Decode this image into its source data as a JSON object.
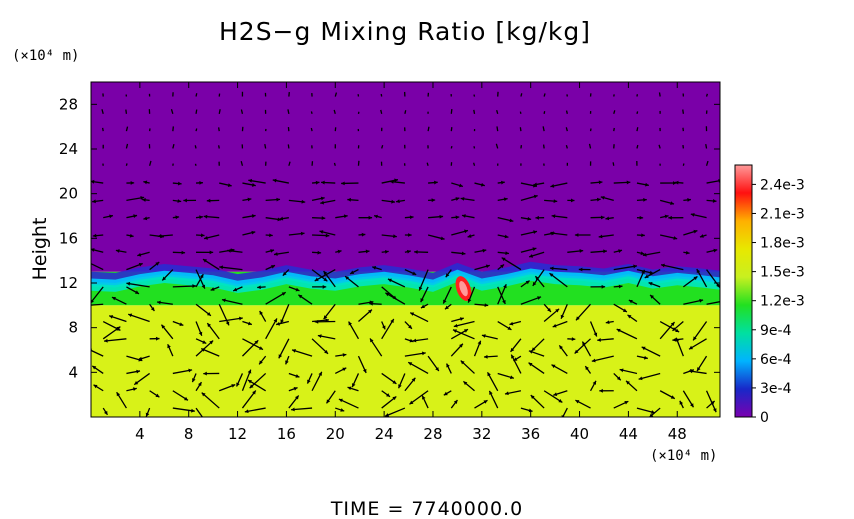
{
  "chart_data": {
    "type": "heatmap",
    "title": "H2S−g Mixing Ratio [kg/kg]",
    "ylabel": "Height",
    "y_unit": "(×10⁴ m)",
    "x_unit": "(×10⁴ m)",
    "footer": "TIME  =  7740000.0",
    "xlim": [
      0,
      51.5
    ],
    "ylim": [
      0,
      30
    ],
    "x_ticks": [
      4,
      8,
      12,
      16,
      20,
      24,
      28,
      32,
      36,
      40,
      44,
      48
    ],
    "y_ticks": [
      4,
      8,
      12,
      16,
      20,
      24,
      28
    ],
    "colorbar": {
      "labels": [
        "2.4e-3",
        "2.1e-3",
        "1.8e-3",
        "1.5e-3",
        "1.2e-3",
        "9e-4",
        "6e-4",
        "3e-4",
        "0"
      ],
      "values": [
        0.0024,
        0.0021,
        0.0018,
        0.0015,
        0.0012,
        0.0009,
        0.0006,
        0.0003,
        0
      ],
      "range": [
        0,
        0.0026
      ],
      "colors": [
        "#7a00b0",
        "#1828c8",
        "#00b4ff",
        "#00e0a0",
        "#22e020",
        "#c8f020",
        "#e8e800",
        "#ffb000",
        "#ff1010",
        "#ff9a9a"
      ]
    },
    "regions": [
      {
        "name": "upper",
        "y_range": [
          13,
          30
        ],
        "value": 0,
        "color": "#7a00a8"
      },
      {
        "name": "transition",
        "y_range": [
          10,
          13
        ],
        "value": 0.0012,
        "color": "#22e020"
      },
      {
        "name": "lower",
        "y_range": [
          0,
          10
        ],
        "value": 0.00165,
        "color": "#d8f218"
      }
    ],
    "interface_profile_x": [
      0,
      2,
      4,
      6,
      8,
      10,
      12,
      14,
      16,
      18,
      20,
      22,
      24,
      26,
      28,
      30,
      32,
      34,
      36,
      38,
      40,
      42,
      44,
      46,
      48,
      50,
      51.5
    ],
    "interface_profile_y": [
      13.0,
      12.9,
      13.4,
      13.7,
      13.5,
      13.3,
      12.8,
      13.1,
      13.6,
      13.2,
      13.0,
      13.4,
      13.6,
      13.3,
      12.9,
      13.8,
      13.0,
      13.4,
      13.9,
      13.6,
      13.5,
      13.3,
      13.7,
      13.2,
      13.5,
      13.3,
      13.1
    ],
    "hotspot": {
      "x": 30.5,
      "y": 11.5,
      "value": 0.0025
    }
  }
}
